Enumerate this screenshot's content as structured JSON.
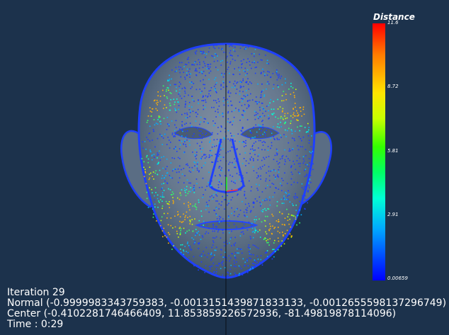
{
  "legend": {
    "title": "Distance",
    "ticks": [
      "11.6",
      "8.72",
      "5.81",
      "2.91",
      "0.00659"
    ]
  },
  "info": {
    "iteration": "Iteration 29",
    "normal": "Normal (-0.9999983343759383, -0.0013151439871833133, -0.0012655598137296749)",
    "center": "Center (-0.4102281746466409, 11.853859226572936, -81.49819878114096)",
    "time": "Time : 0:29"
  },
  "colors": {
    "background": "#1c324c",
    "face_surface": "#5f7389",
    "point_low": "#1d3cff",
    "point_high": "#ff2a00"
  }
}
